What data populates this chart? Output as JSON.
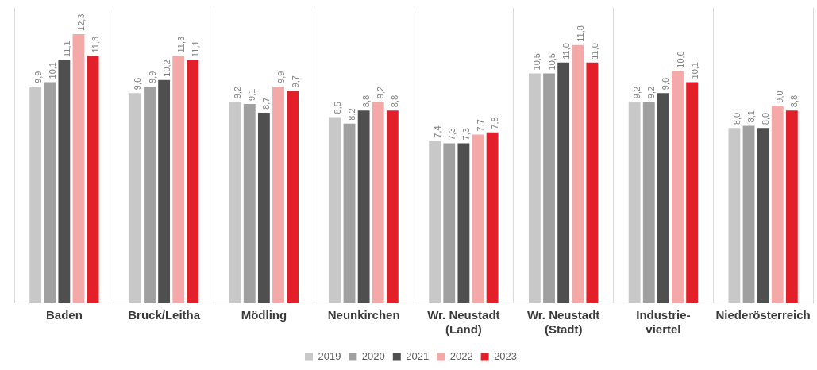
{
  "chart_data": {
    "type": "bar",
    "categories": [
      "Baden",
      "Bruck/Leitha",
      "Mödling",
      "Neunkirchen",
      "Wr. Neustadt\n(Land)",
      "Wr. Neustadt\n(Stadt)",
      "Industrie-\nviertel",
      "Niederösterreich"
    ],
    "series": [
      {
        "name": "2019",
        "color": "#c8c8c8",
        "values": [
          9.9,
          9.6,
          9.2,
          8.5,
          7.4,
          10.5,
          9.2,
          8.0
        ],
        "value_labels": [
          "9,9",
          "9,6",
          "9,2",
          "8,5",
          "7,4",
          "10,5",
          "9,2",
          "8,0"
        ]
      },
      {
        "name": "2020",
        "color": "#a0a0a0",
        "values": [
          10.1,
          9.9,
          9.1,
          8.2,
          7.3,
          10.5,
          9.2,
          8.1
        ],
        "value_labels": [
          "10,1",
          "9,9",
          "9,1",
          "8,2",
          "7,3",
          "10,5",
          "9,2",
          "8,1"
        ]
      },
      {
        "name": "2021",
        "color": "#4f4f4f",
        "values": [
          11.1,
          10.2,
          8.7,
          8.8,
          7.3,
          11.0,
          9.6,
          8.0
        ],
        "value_labels": [
          "11,1",
          "10,2",
          "8,7",
          "8,8",
          "7,3",
          "11,0",
          "9,6",
          "8,0"
        ]
      },
      {
        "name": "2022",
        "color": "#f5a8a8",
        "values": [
          12.3,
          11.3,
          9.9,
          9.2,
          7.7,
          11.8,
          10.6,
          9.0
        ],
        "value_labels": [
          "12,3",
          "11,3",
          "9,9",
          "9,2",
          "7,7",
          "11,8",
          "10,6",
          "9,0"
        ]
      },
      {
        "name": "2023",
        "color": "#e3202a",
        "values": [
          11.3,
          11.1,
          9.7,
          8.8,
          7.8,
          11.0,
          10.1,
          8.8
        ],
        "value_labels": [
          "11,3",
          "11,1",
          "9,7",
          "8,8",
          "7,8",
          "11,0",
          "10,1",
          "8,8"
        ]
      }
    ],
    "ylim": [
      0,
      13.5
    ],
    "grid": "x",
    "legend": "bottom",
    "data_labels": true,
    "tick_labels": "x"
  }
}
